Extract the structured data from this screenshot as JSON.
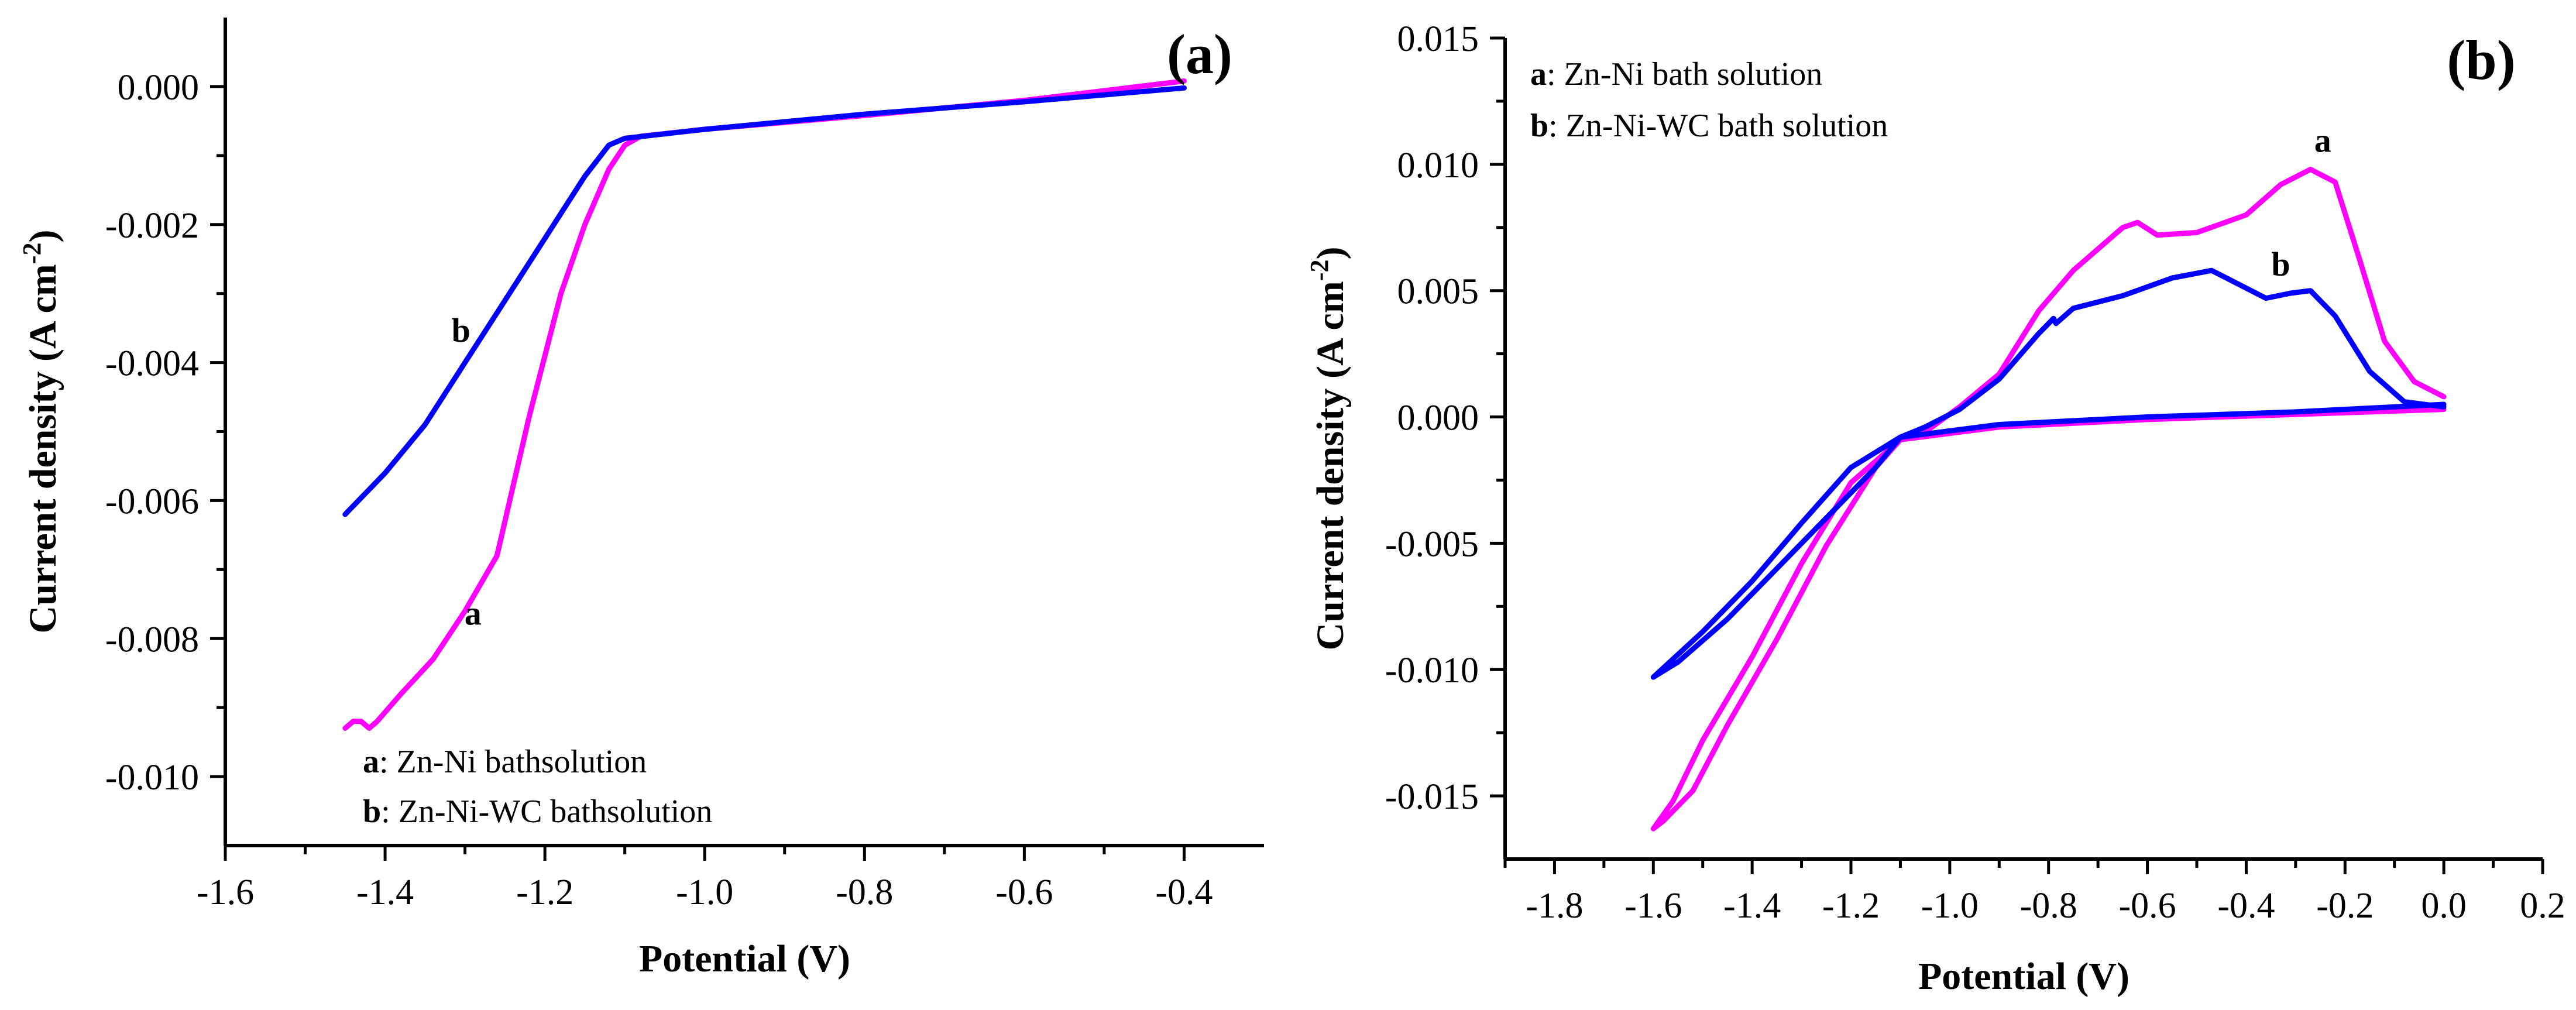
{
  "chart_data": [
    {
      "type": "line",
      "panel_label": "(a)",
      "xlabel": "Potential (V)",
      "ylabel_main": "Current density (A cm",
      "ylabel_exp": "-2",
      "ylabel_close": ")",
      "xlim": [
        -1.6,
        -0.3
      ],
      "ylim": [
        -0.011,
        0.001
      ],
      "xticks": [
        -1.6,
        -1.4,
        -1.2,
        -1.0,
        -0.8,
        -0.6,
        -0.4
      ],
      "xtick_labels": [
        "-1.6",
        "-1.4",
        "-1.2",
        "-1.0",
        "-0.8",
        "-0.6",
        "-0.4"
      ],
      "yticks": [
        0.0,
        -0.002,
        -0.004,
        -0.006,
        -0.008,
        -0.01
      ],
      "ytick_labels": [
        "0.000",
        "-0.002",
        "-0.004",
        "-0.006",
        "-0.008",
        "-0.010"
      ],
      "series": [
        {
          "name": "a",
          "color": "#ff00ff",
          "label_text": "a",
          "label_pos": {
            "x": -1.29,
            "y": -0.0078
          },
          "points": [
            [
              -1.45,
              -0.0093
            ],
            [
              -1.44,
              -0.0092
            ],
            [
              -1.43,
              -0.0092
            ],
            [
              -1.42,
              -0.0093
            ],
            [
              -1.41,
              -0.0092
            ],
            [
              -1.38,
              -0.0088
            ],
            [
              -1.34,
              -0.0083
            ],
            [
              -1.3,
              -0.0076
            ],
            [
              -1.26,
              -0.0068
            ],
            [
              -1.22,
              -0.0048
            ],
            [
              -1.18,
              -0.003
            ],
            [
              -1.15,
              -0.002
            ],
            [
              -1.12,
              -0.0012
            ],
            [
              -1.1,
              -0.00085
            ],
            [
              -1.08,
              -0.00072
            ],
            [
              -1.0,
              -0.00062
            ],
            [
              -0.8,
              -0.00042
            ],
            [
              -0.6,
              -0.0002
            ],
            [
              -0.5,
              -6e-05
            ],
            [
              -0.4,
              8e-05
            ]
          ]
        },
        {
          "name": "b",
          "color": "#0000ff",
          "label_text": "b",
          "label_pos": {
            "x": -1.305,
            "y": -0.0037
          },
          "points": [
            [
              -1.45,
              -0.0062
            ],
            [
              -1.4,
              -0.0056
            ],
            [
              -1.35,
              -0.0049
            ],
            [
              -1.3,
              -0.004
            ],
            [
              -1.25,
              -0.0031
            ],
            [
              -1.2,
              -0.0022
            ],
            [
              -1.15,
              -0.0013
            ],
            [
              -1.12,
              -0.00085
            ],
            [
              -1.1,
              -0.00075
            ],
            [
              -1.0,
              -0.00062
            ],
            [
              -0.8,
              -0.0004
            ],
            [
              -0.6,
              -0.00022
            ],
            [
              -0.4,
              -2e-05
            ]
          ]
        }
      ],
      "legend": [
        {
          "key": "a",
          "text": ": Zn-Ni bathsolution"
        },
        {
          "key": "b",
          "text": ": Zn-Ni-WC bathsolution"
        }
      ],
      "legend_location": "bottom-left"
    },
    {
      "type": "line",
      "panel_label": "(b)",
      "xlabel": "Potential (V)",
      "ylabel_main": "Current density (A cm",
      "ylabel_exp": "-2",
      "ylabel_close": ")",
      "xlim": [
        -1.9,
        0.2
      ],
      "ylim": [
        -0.0175,
        0.015
      ],
      "xticks": [
        -1.8,
        -1.6,
        -1.4,
        -1.2,
        -1.0,
        -0.8,
        -0.6,
        -0.4,
        -0.2,
        0.0,
        0.2
      ],
      "xtick_labels": [
        "-1.8",
        "-1.6",
        "-1.4",
        "-1.2",
        "-1.0",
        "-0.8",
        "-0.6",
        "-0.4",
        "-0.2",
        "0.0",
        "0.2"
      ],
      "yticks": [
        0.015,
        0.01,
        0.005,
        0.0,
        -0.005,
        -0.01,
        -0.015
      ],
      "ytick_labels": [
        "0.015",
        "0.010",
        "0.005",
        "0.000",
        "-0.005",
        "-0.010",
        "-0.015"
      ],
      "series": [
        {
          "name": "a",
          "color": "#ff00ff",
          "label_text": "a",
          "label_pos": {
            "x": -0.245,
            "y": 0.0105
          },
          "points": [
            [
              0.0,
              0.0003
            ],
            [
              -0.3,
              0.0001
            ],
            [
              -0.6,
              -0.0001
            ],
            [
              -0.9,
              -0.0004
            ],
            [
              -1.1,
              -0.0009
            ],
            [
              -1.2,
              -0.0026
            ],
            [
              -1.3,
              -0.0058
            ],
            [
              -1.4,
              -0.0095
            ],
            [
              -1.5,
              -0.0128
            ],
            [
              -1.56,
              -0.0152
            ],
            [
              -1.6,
              -0.0163
            ],
            [
              -1.58,
              -0.016
            ],
            [
              -1.52,
              -0.0148
            ],
            [
              -1.45,
              -0.0122
            ],
            [
              -1.35,
              -0.0088
            ],
            [
              -1.25,
              -0.0051
            ],
            [
              -1.15,
              -0.002
            ],
            [
              -1.1,
              -0.0009
            ],
            [
              -1.05,
              -0.0006
            ],
            [
              -0.98,
              0.0004
            ],
            [
              -0.9,
              0.0017
            ],
            [
              -0.82,
              0.0042
            ],
            [
              -0.75,
              0.0058
            ],
            [
              -0.65,
              0.0075
            ],
            [
              -0.62,
              0.0077
            ],
            [
              -0.58,
              0.0072
            ],
            [
              -0.5,
              0.0073
            ],
            [
              -0.4,
              0.008
            ],
            [
              -0.33,
              0.0092
            ],
            [
              -0.27,
              0.0098
            ],
            [
              -0.22,
              0.0093
            ],
            [
              -0.17,
              0.0062
            ],
            [
              -0.12,
              0.003
            ],
            [
              -0.06,
              0.0014
            ],
            [
              0.0,
              0.0008
            ]
          ]
        },
        {
          "name": "b",
          "color": "#0000ff",
          "label_text": "b",
          "label_pos": {
            "x": -0.33,
            "y": 0.0056
          },
          "points": [
            [
              0.0,
              0.0005
            ],
            [
              -0.3,
              0.0002
            ],
            [
              -0.6,
              0.0
            ],
            [
              -0.9,
              -0.0003
            ],
            [
              -1.1,
              -0.0008
            ],
            [
              -1.2,
              -0.002
            ],
            [
              -1.3,
              -0.0042
            ],
            [
              -1.4,
              -0.0065
            ],
            [
              -1.5,
              -0.0085
            ],
            [
              -1.6,
              -0.0103
            ],
            [
              -1.55,
              -0.0097
            ],
            [
              -1.45,
              -0.008
            ],
            [
              -1.35,
              -0.006
            ],
            [
              -1.25,
              -0.004
            ],
            [
              -1.15,
              -0.002
            ],
            [
              -1.1,
              -0.0008
            ],
            [
              -1.05,
              -0.0004
            ],
            [
              -0.98,
              0.0003
            ],
            [
              -0.9,
              0.0015
            ],
            [
              -0.82,
              0.0033
            ],
            [
              -0.79,
              0.0039
            ],
            [
              -0.785,
              0.0037
            ],
            [
              -0.75,
              0.0043
            ],
            [
              -0.65,
              0.0048
            ],
            [
              -0.55,
              0.0055
            ],
            [
              -0.47,
              0.0058
            ],
            [
              -0.42,
              0.0053
            ],
            [
              -0.36,
              0.0047
            ],
            [
              -0.31,
              0.0049
            ],
            [
              -0.27,
              0.005
            ],
            [
              -0.22,
              0.004
            ],
            [
              -0.15,
              0.0018
            ],
            [
              -0.08,
              0.0006
            ],
            [
              0.0,
              0.0004
            ]
          ]
        }
      ],
      "legend": [
        {
          "key": "a",
          "text": ": Zn-Ni bath solution"
        },
        {
          "key": "b",
          "text": ": Zn-Ni-WC bath solution"
        }
      ],
      "legend_location": "top-left"
    }
  ]
}
